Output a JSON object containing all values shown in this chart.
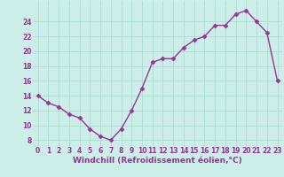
{
  "x": [
    0,
    1,
    2,
    3,
    4,
    5,
    6,
    7,
    8,
    9,
    10,
    11,
    12,
    13,
    14,
    15,
    16,
    17,
    18,
    19,
    20,
    21,
    22,
    23
  ],
  "y": [
    14,
    13,
    12.5,
    11.5,
    11,
    9.5,
    8.5,
    8,
    9.5,
    12,
    15,
    18.5,
    19,
    19,
    20.5,
    21.5,
    22,
    23.5,
    23.5,
    25,
    25.5,
    24,
    22.5,
    16
  ],
  "line_color": "#993399",
  "marker": "D",
  "marker_size": 2.5,
  "bg_color": "#cceee8",
  "grid_color": "#aaddcc",
  "xlabel": "Windchill (Refroidissement éolien,°C)",
  "xlabel_fontsize": 6.5,
  "xtick_labels": [
    "0",
    "1",
    "2",
    "3",
    "4",
    "5",
    "6",
    "7",
    "8",
    "9",
    "10",
    "11",
    "12",
    "13",
    "14",
    "15",
    "16",
    "17",
    "18",
    "19",
    "20",
    "21",
    "22",
    "23"
  ],
  "ytick_values": [
    8,
    10,
    12,
    14,
    16,
    18,
    20,
    22,
    24
  ],
  "ylim": [
    7.2,
    26.8
  ],
  "xlim": [
    -0.5,
    23.5
  ],
  "tick_fontsize": 5.5,
  "line_width": 1.0
}
